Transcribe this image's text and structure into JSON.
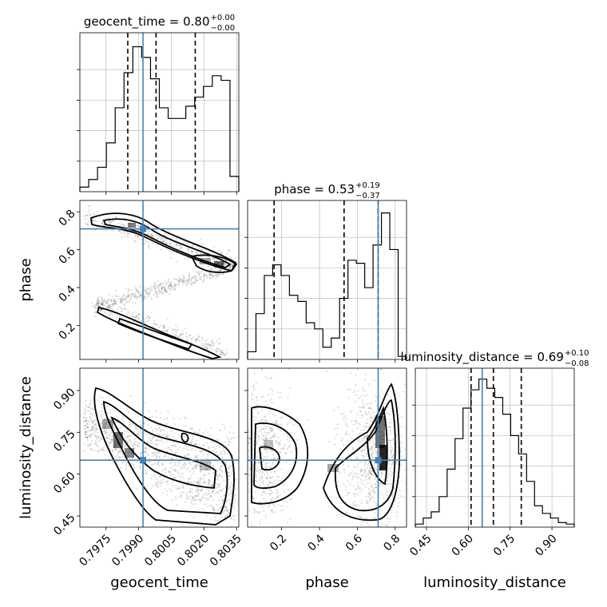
{
  "chart_data": {
    "type": "corner",
    "parameters": [
      {
        "name": "geocent_time",
        "axis_label": "geocent_time",
        "title": "geocent_time = 0.80",
        "title_sup": "+0.00",
        "title_sub": "−0.00",
        "range": [
          0.7963,
          0.8036
        ],
        "tick_values": [
          0.7975,
          0.799,
          0.8005,
          0.802,
          0.8035
        ],
        "tick_labels": [
          "0.7975",
          "0.7990",
          "0.8005",
          "0.8020",
          "0.8035"
        ],
        "quantiles": [
          0.7985,
          0.7998,
          0.8016
        ],
        "truth": 0.7992,
        "hist_values": [
          0.03,
          0.08,
          0.16,
          0.32,
          0.55,
          0.78,
          0.95,
          0.88,
          0.74,
          0.55,
          0.48,
          0.48,
          0.56,
          0.62,
          0.69,
          0.76,
          0.73,
          0.1
        ]
      },
      {
        "name": "phase",
        "axis_label": "phase",
        "title": "phase = 0.53",
        "title_sup": "+0.19",
        "title_sub": "−0.37",
        "range": [
          0.02,
          0.86
        ],
        "tick_values": [
          0.2,
          0.4,
          0.6,
          0.8
        ],
        "tick_labels": [
          "0.2",
          "0.4",
          "0.6",
          "0.8"
        ],
        "quantiles": [
          0.16,
          0.53,
          0.71
        ],
        "truth": 0.71,
        "hist_values": [
          0.05,
          0.3,
          0.55,
          0.62,
          0.55,
          0.42,
          0.38,
          0.24,
          0.2,
          0.08,
          0.14,
          0.4,
          0.65,
          0.63,
          0.47,
          0.75,
          0.96,
          0.72,
          0.02
        ]
      },
      {
        "name": "luminosity_distance",
        "axis_label": "luminosity_distance",
        "title": "luminosity_distance = 0.69",
        "title_sup": "+0.10",
        "title_sub": "−0.08",
        "range": [
          0.41,
          0.98
        ],
        "tick_values": [
          0.45,
          0.6,
          0.75,
          0.9
        ],
        "tick_labels": [
          "0.45",
          "0.60",
          "0.75",
          "0.90"
        ],
        "quantiles": [
          0.61,
          0.69,
          0.79
        ],
        "truth": 0.65,
        "hist_values": [
          0.02,
          0.06,
          0.1,
          0.2,
          0.38,
          0.58,
          0.78,
          0.9,
          0.97,
          0.91,
          0.85,
          0.74,
          0.6,
          0.48,
          0.3,
          0.14,
          0.09,
          0.06,
          0.03,
          0.02
        ]
      }
    ],
    "grid": true,
    "truth_color": "#4682b4",
    "hist_color": "#000000",
    "quantile_color": "#000000",
    "contour_color": "#000000"
  }
}
